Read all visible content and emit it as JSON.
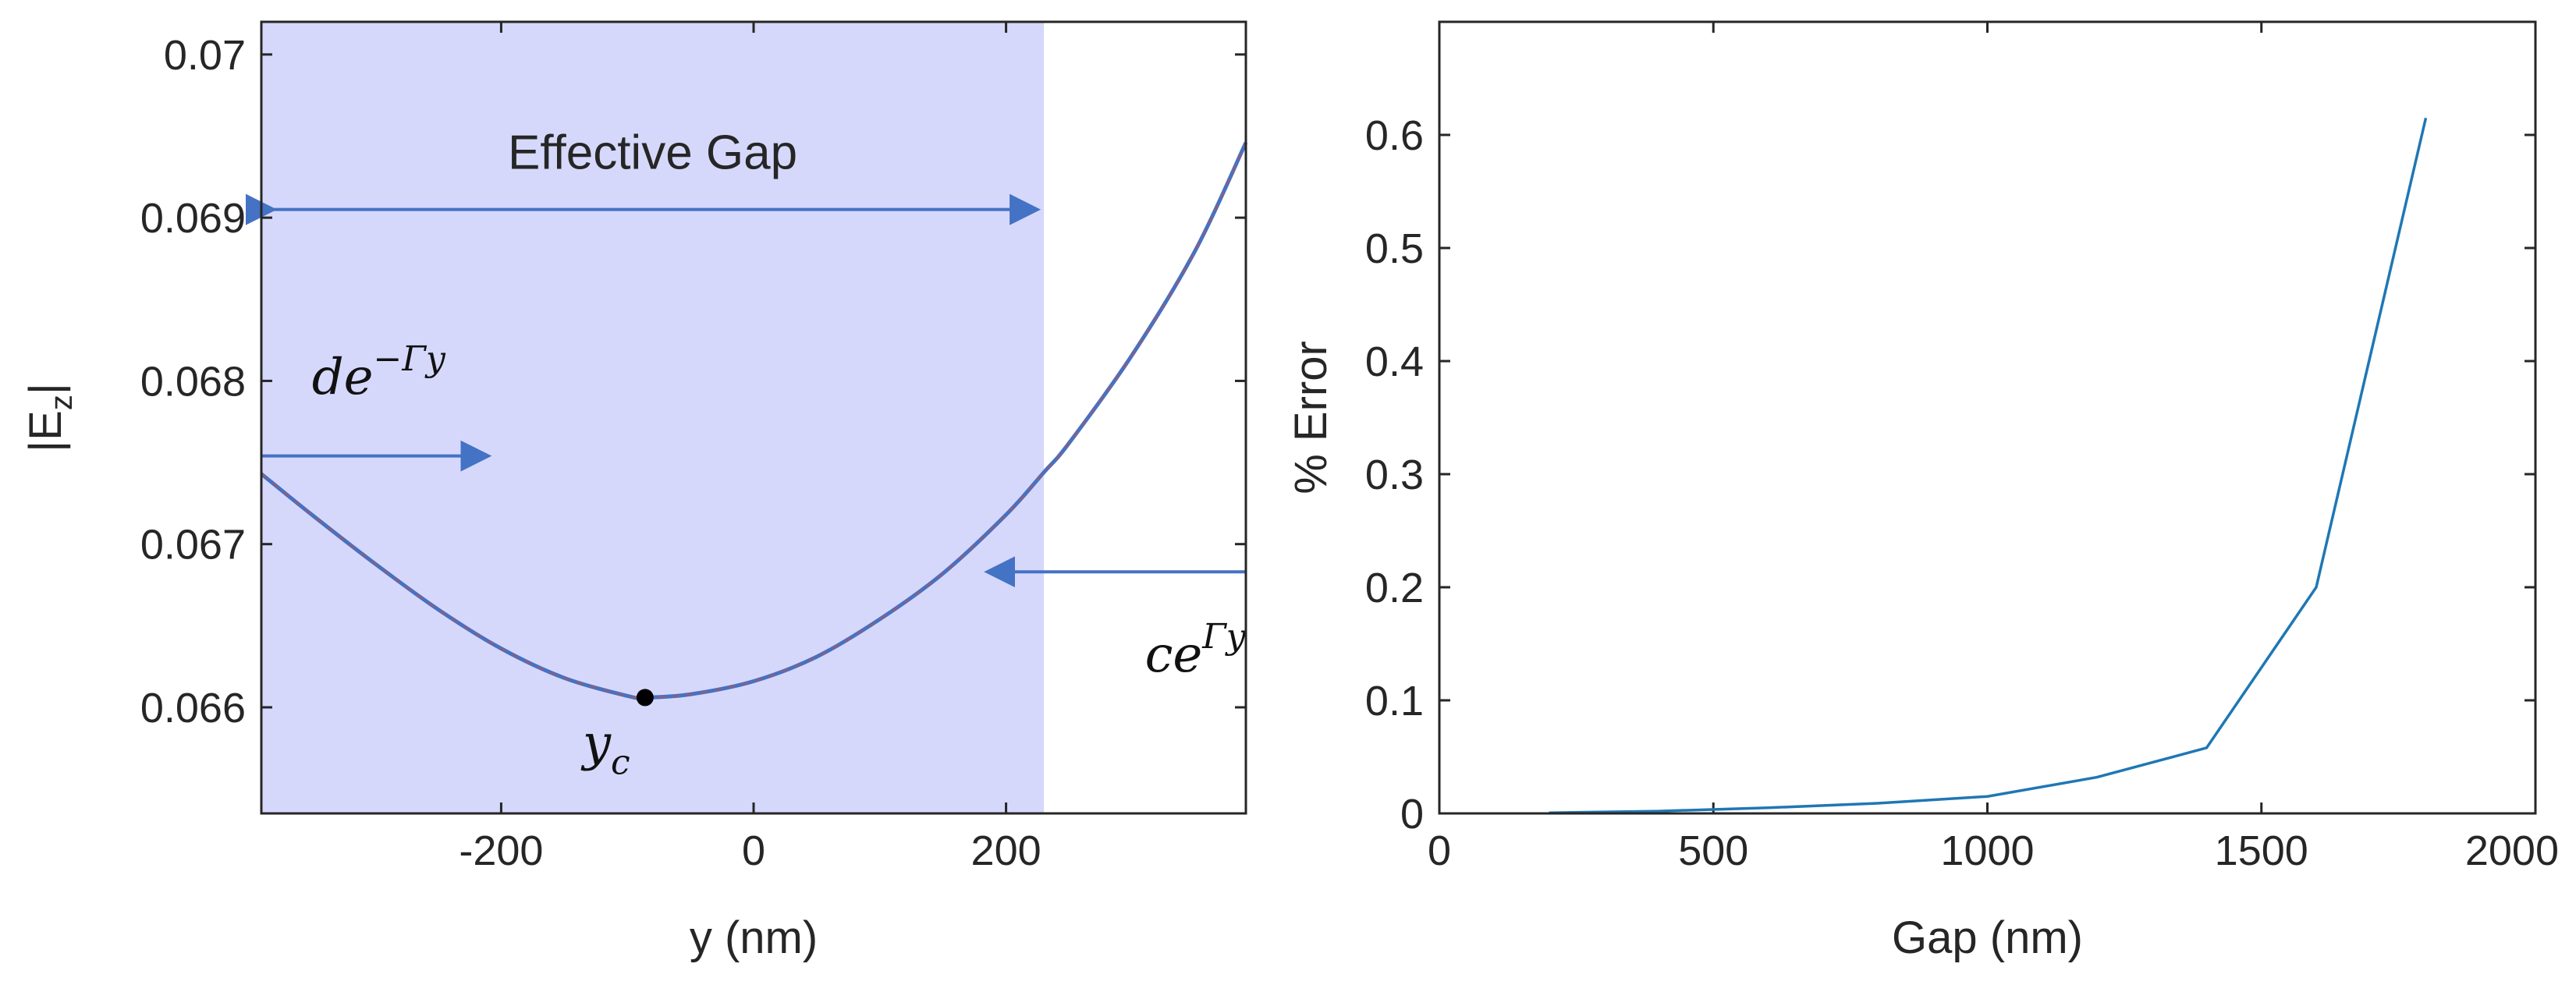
{
  "chart_data": [
    {
      "type": "line",
      "xlabel": "y (nm)",
      "ylabel": "|E",
      "ylabel_sub": "z",
      "ylabel_end": "|",
      "xlim": [
        -390,
        390
      ],
      "ylim": [
        0.06535,
        0.0702
      ],
      "x_ticks": [
        -200,
        0,
        200
      ],
      "x_tick_labels": [
        "-200",
        "0",
        "200"
      ],
      "y_ticks": [
        0.066,
        0.067,
        0.068,
        0.069,
        0.07
      ],
      "y_tick_labels": [
        "0.066",
        "0.067",
        "0.068",
        "0.069",
        "0.07"
      ],
      "grid": false,
      "series": [
        {
          "color": "#4472c4",
          "x": [
            -390,
            -350,
            -300,
            -250,
            -200,
            -150,
            -100,
            -86,
            -50,
            0,
            50,
            100,
            150,
            200,
            230,
            250,
            300,
            350,
            390
          ],
          "y": [
            0.06743,
            0.06718,
            0.06688,
            0.0666,
            0.06636,
            0.06618,
            0.06607,
            0.06606,
            0.06608,
            0.06616,
            0.06631,
            0.06654,
            0.06682,
            0.06718,
            0.06744,
            0.06762,
            0.06816,
            0.0688,
            0.06946
          ]
        }
      ],
      "shaded_region": {
        "x_start": -390,
        "x_end": 230,
        "color": "#d6d8fb"
      },
      "annotations": {
        "effective_gap": {
          "text": "Effective Gap",
          "x": -80,
          "y": 0.0693,
          "arrow_y": 0.06905,
          "arrow_x": [
            -390,
            230
          ]
        },
        "decay_left": {
          "base": "de",
          "sup": "−Γy",
          "x": -350,
          "y": 0.06792,
          "arrow_y": 0.06754,
          "arrow_x": [
            -390,
            -205
          ]
        },
        "decay_right": {
          "base": "ce",
          "sup": "Γy",
          "x": 310,
          "y": 0.06622,
          "arrow_y": 0.06683,
          "arrow_x": [
            390,
            180
          ]
        },
        "center": {
          "base": "y",
          "sub": "c",
          "x": -86,
          "y": 0.06606
        }
      }
    },
    {
      "type": "line",
      "xlabel": "Gap (nm)",
      "ylabel": "% Error",
      "xlim": [
        0,
        2000
      ],
      "ylim": [
        0,
        0.7
      ],
      "x_ticks": [
        0,
        500,
        1000,
        1500,
        2000
      ],
      "x_tick_labels": [
        "0",
        "500",
        "1000",
        "1500",
        "2000"
      ],
      "y_ticks": [
        0,
        0.1,
        0.2,
        0.3,
        0.4,
        0.5,
        0.6
      ],
      "y_tick_labels": [
        "0",
        "0.1",
        "0.2",
        "0.3",
        "0.4",
        "0.5",
        "0.6"
      ],
      "grid": false,
      "series": [
        {
          "color": "#1f77b4",
          "x": [
            200,
            400,
            600,
            800,
            1000,
            1200,
            1400,
            1600,
            1800
          ],
          "y": [
            0.0005,
            0.002,
            0.005,
            0.009,
            0.015,
            0.032,
            0.058,
            0.2,
            0.615
          ]
        }
      ]
    }
  ]
}
